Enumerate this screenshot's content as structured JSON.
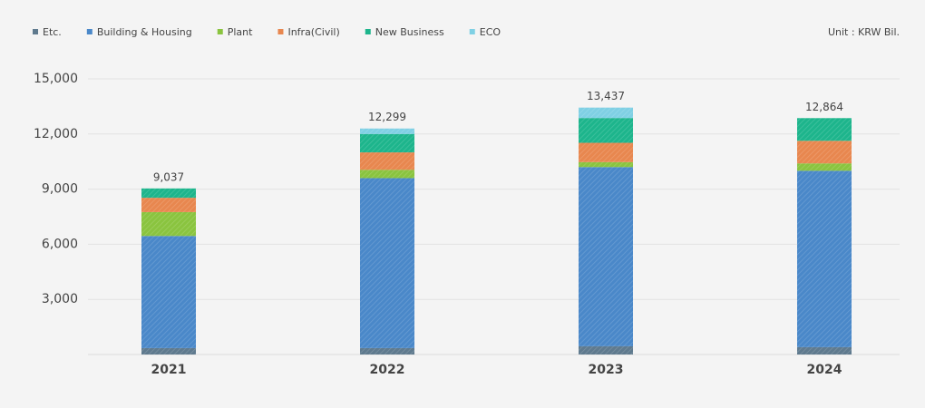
{
  "chart_data": {
    "type": "stacked_bar",
    "unit_label": "Unit : KRW Bil.",
    "categories": [
      "2021",
      "2022",
      "2023",
      "2024"
    ],
    "series": [
      {
        "name": "Etc.",
        "color": "#5f7a8e",
        "values": [
          350,
          350,
          450,
          400
        ]
      },
      {
        "name": "Building & Housing",
        "color": "#4a88c9",
        "values": [
          6100,
          9250,
          9750,
          9600
        ]
      },
      {
        "name": "Plant",
        "color": "#8ac43f",
        "values": [
          1300,
          450,
          270,
          400
        ]
      },
      {
        "name": "Infra(Civil)",
        "color": "#e8874f",
        "values": [
          780,
          950,
          1050,
          1230
        ]
      },
      {
        "name": "New Business",
        "color": "#1db58c",
        "values": [
          507,
          1000,
          1350,
          1234
        ]
      },
      {
        "name": "ECO",
        "color": "#7fd0e4",
        "values": [
          0,
          299,
          567,
          0
        ]
      }
    ],
    "totals": [
      9037,
      12299,
      13437,
      12864
    ],
    "total_labels": [
      "9,037",
      "12,299",
      "13,437",
      "12,864"
    ],
    "ylim": [
      0,
      15000
    ],
    "yticks": [
      {
        "value": 3000,
        "label": "3,000"
      },
      {
        "value": 6000,
        "label": "6,000"
      },
      {
        "value": 9000,
        "label": "9,000"
      },
      {
        "value": 12000,
        "label": "12,000"
      },
      {
        "value": 15000,
        "label": "15,000"
      }
    ],
    "grid": true
  }
}
